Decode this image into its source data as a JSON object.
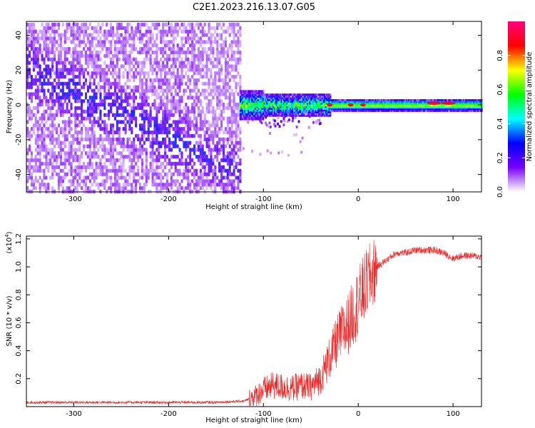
{
  "title": "C2E1.2023.216.13.07.G05",
  "colors": {
    "snr_line": "#e82a2a",
    "spectrogram_background": "#6a0dff",
    "frame": "#000000"
  },
  "chart_data": [
    {
      "type": "heatmap",
      "xlabel": "Height of straight line (km)",
      "ylabel": "Frequency (Hz)",
      "xlim": [
        -350,
        130
      ],
      "ylim": [
        -50,
        48
      ],
      "x_ticks": [
        -300,
        -200,
        -100,
        0,
        100
      ],
      "x_tick_labels": [
        "-300",
        "-200",
        "-100",
        "0",
        "100"
      ],
      "y_ticks": [
        -40,
        -20,
        0,
        20,
        40
      ],
      "y_tick_labels": [
        "-40",
        "-20",
        "0",
        "20",
        "40"
      ],
      "colorbar": {
        "label": "Normalized spectral amplitude",
        "range": [
          0.0,
          1.0
        ],
        "ticks": [
          0.0,
          0.2,
          0.4,
          0.6,
          0.8
        ],
        "tick_labels": [
          "0.0",
          "0.2",
          "0.4",
          "0.6",
          "0.8"
        ],
        "colormap": [
          "#ffffff",
          "#7a00ff",
          "#0000ff",
          "#00ffff",
          "#00ff00",
          "#ffff00",
          "#ff0000",
          "#ff0080"
        ]
      },
      "regions": [
        {
          "description": "broadband scatter",
          "x_range": [
            -350,
            -125
          ],
          "freq_range": [
            -50,
            48
          ],
          "amplitude": [
            0.0,
            0.3
          ]
        },
        {
          "description": "tone near 0 Hz",
          "x_range": [
            -125,
            130
          ],
          "freq_center": 0,
          "freq_halfwidth": [
            4,
            2
          ],
          "amplitude": [
            0.3,
            1.0
          ]
        }
      ],
      "peaks": [
        {
          "x": -30,
          "freq": 0,
          "amplitude": 0.9
        },
        {
          "x": -8,
          "freq": 0,
          "amplitude": 0.85
        },
        {
          "x": 5,
          "freq": 0,
          "amplitude": 0.85
        },
        {
          "x": 80,
          "freq": 1,
          "amplitude": 0.9
        },
        {
          "x": 95,
          "freq": 1,
          "amplitude": 0.9
        }
      ]
    },
    {
      "type": "line",
      "xlabel": "Height of straight line (km)",
      "ylabel": "SNR (10 * v/v)",
      "y_multiplier_label": "(x10",
      "y_multiplier_exponent": "4",
      "xlim": [
        -350,
        130
      ],
      "ylim": [
        0.0,
        1.22
      ],
      "x_ticks": [
        -300,
        -200,
        -100,
        0,
        100
      ],
      "x_tick_labels": [
        "-300",
        "-200",
        "-100",
        "0",
        "100"
      ],
      "y_ticks": [
        0.2,
        0.4,
        0.6,
        0.8,
        1.0,
        1.2
      ],
      "y_tick_labels": [
        "0.2",
        "0.4",
        "0.6",
        "0.8",
        "1.0",
        "1.2"
      ],
      "series": [
        {
          "x": [
            -350,
            -300,
            -250,
            -200,
            -150,
            -120,
            -110,
            -100,
            -90,
            -80,
            -70,
            -60,
            -50,
            -40,
            -30,
            -20,
            -10,
            0,
            10,
            20,
            30,
            40,
            50,
            60,
            70,
            80,
            90,
            100,
            110,
            120,
            130
          ],
          "y": [
            0.03,
            0.03,
            0.03,
            0.03,
            0.03,
            0.04,
            0.07,
            0.12,
            0.15,
            0.14,
            0.13,
            0.15,
            0.14,
            0.2,
            0.35,
            0.5,
            0.6,
            0.75,
            0.9,
            1.0,
            1.05,
            1.1,
            1.1,
            1.12,
            1.12,
            1.12,
            1.1,
            1.06,
            1.08,
            1.08,
            1.07
          ]
        }
      ]
    }
  ]
}
